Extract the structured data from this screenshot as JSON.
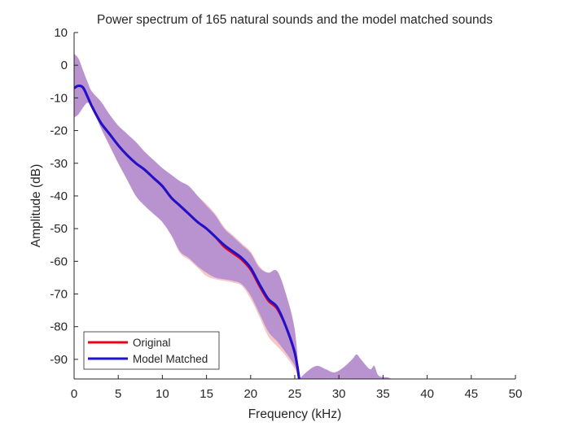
{
  "chart_data": {
    "type": "area",
    "title": "Power spectrum of 165 natural sounds and the model matched sounds",
    "xlabel": "Frequency (kHz)",
    "ylabel": "Amplitude (dB)",
    "xlim": [
      0,
      50
    ],
    "ylim": [
      -96,
      10
    ],
    "xticks": [
      "0",
      "5",
      "10",
      "15",
      "20",
      "25",
      "30",
      "35",
      "40",
      "45",
      "50"
    ],
    "yticks": [
      "10",
      "0",
      "-10",
      "-20",
      "-30",
      "-40",
      "-50",
      "-60",
      "-70",
      "-80",
      "-90"
    ],
    "grid": false,
    "legend_position": "bottom-left",
    "colors": {
      "original_line": "#e6001a",
      "model_line": "#1f12cc",
      "original_band": "#f7c6c6",
      "model_band": "#b993cf",
      "axis": "#262626"
    },
    "series": [
      {
        "name": "Original",
        "x": [
          0,
          0.5,
          1,
          1.5,
          2,
          3,
          4,
          5,
          6,
          7,
          8,
          9,
          10,
          11,
          12,
          13,
          14,
          15,
          16,
          17,
          18,
          19,
          20,
          21,
          22,
          23,
          24,
          25,
          25.5
        ],
        "values": [
          -7,
          -6.3,
          -6.8,
          -9.5,
          -12.5,
          -17.5,
          -21,
          -24.5,
          -27.5,
          -30,
          -32,
          -34.5,
          -37,
          -40.5,
          -43,
          -45.5,
          -48,
          -50,
          -52.5,
          -55.5,
          -57.5,
          -59.5,
          -62.5,
          -67.5,
          -72,
          -74.5,
          -80,
          -88,
          -96
        ],
        "band_upper": [
          3.5,
          2,
          -1.5,
          -5,
          -8,
          -11,
          -15,
          -18.5,
          -21,
          -23.5,
          -26.5,
          -29,
          -31.5,
          -33.5,
          -35.5,
          -37,
          -40,
          -42.5,
          -45.5,
          -49.5,
          -52,
          -54.5,
          -57,
          -61.5,
          -63.5,
          -63,
          -70,
          -81,
          -96
        ],
        "band_lower": [
          -16,
          -15,
          -13,
          -11.5,
          -12.5,
          -19,
          -24.5,
          -30,
          -35,
          -40,
          -43,
          -45.5,
          -48,
          -52,
          -57.5,
          -59.5,
          -62,
          -64.5,
          -65.5,
          -66,
          -66.5,
          -67.5,
          -71.5,
          -77,
          -83,
          -86,
          -89,
          -93,
          -96
        ]
      },
      {
        "name": "Model Matched",
        "x": [
          0,
          0.5,
          1,
          1.5,
          2,
          3,
          4,
          5,
          6,
          7,
          8,
          9,
          10,
          11,
          12,
          13,
          14,
          15,
          16,
          17,
          18,
          19,
          20,
          21,
          22,
          23,
          24,
          25,
          25.5
        ],
        "values": [
          -7,
          -6.3,
          -6.8,
          -9.5,
          -12.5,
          -17.5,
          -21,
          -24.5,
          -27.5,
          -30,
          -32,
          -34.5,
          -37,
          -40.5,
          -43,
          -45.5,
          -48,
          -50,
          -52.5,
          -55,
          -57,
          -59,
          -62,
          -67,
          -71.5,
          -74,
          -80,
          -88,
          -96
        ],
        "band_upper": [
          3.5,
          2,
          -1.5,
          -5,
          -8,
          -11,
          -15,
          -18.5,
          -21,
          -23.5,
          -26.5,
          -29,
          -31.5,
          -33.5,
          -35.5,
          -37,
          -40,
          -43,
          -46,
          -50,
          -52.5,
          -55,
          -57.5,
          -62,
          -63.5,
          -63,
          -70,
          -81,
          -96
        ],
        "band_lower": [
          -16,
          -15,
          -13,
          -11.5,
          -12.5,
          -19,
          -24.5,
          -30,
          -35,
          -40,
          -43,
          -45.5,
          -48,
          -52,
          -57,
          -59,
          -61.5,
          -63.5,
          -65,
          -65.5,
          -66,
          -67,
          -70.5,
          -76,
          -81.5,
          -84.5,
          -88,
          -92,
          -96
        ],
        "residual_x": [
          25.5,
          26.5,
          27.5,
          28.5,
          29.5,
          30.5,
          31.5,
          32,
          32.5,
          33.5,
          34,
          34.5,
          35.5,
          36
        ],
        "residual_upper": [
          -96,
          -93.5,
          -92,
          -93,
          -94,
          -92.5,
          -90,
          -88.5,
          -90,
          -93,
          -92,
          -95,
          -95.5,
          -96
        ]
      }
    ]
  }
}
